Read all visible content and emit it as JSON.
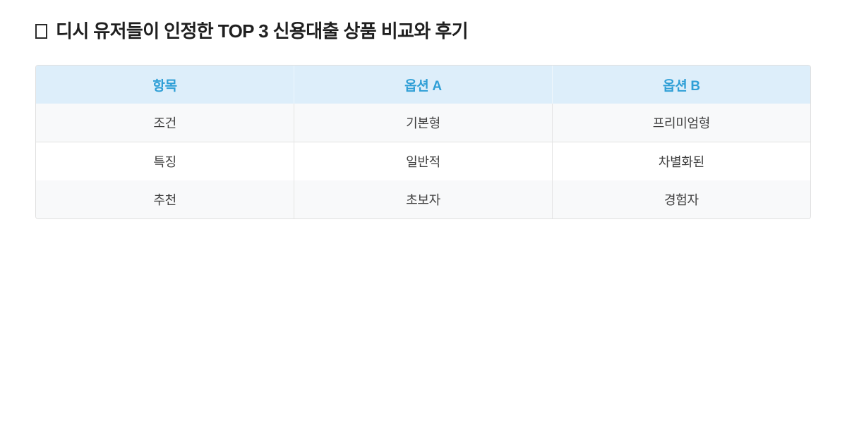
{
  "page": {
    "title": "디시 유저들이 인정한 TOP 3 신용대출 상품 비교와 후기",
    "title_icon": "missing-glyph-box"
  },
  "table": {
    "columns": [
      "항목",
      "옵션 A",
      "옵션 B"
    ],
    "rows": [
      [
        "조건",
        "기본형",
        "프리미엄형"
      ],
      [
        "특징",
        "일반적",
        "차별화된"
      ],
      [
        "추천",
        "초보자",
        "경험자"
      ]
    ]
  },
  "colors": {
    "header_bg": "#ddeefa",
    "header_text": "#2f9fd6",
    "body_text": "#3f3f3f",
    "stripe_bg": "#f8f9fa",
    "border": "#e0e0e0"
  }
}
